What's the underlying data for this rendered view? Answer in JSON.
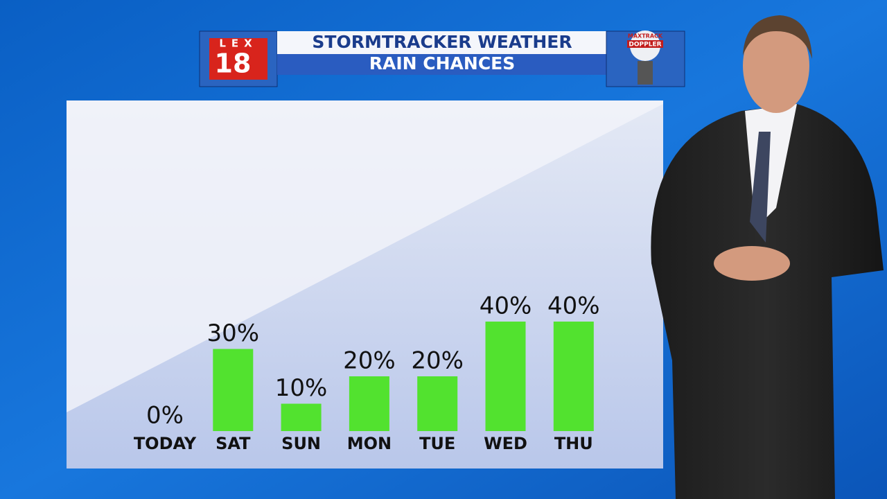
{
  "logo": {
    "station": "LEX",
    "channel": "18"
  },
  "radar_logo": {
    "line1": "MAXTRACK",
    "line2": "DOPPLER"
  },
  "chart_data": {
    "type": "bar",
    "title": "STORMTRACKER WEATHER",
    "subtitle": "RAIN CHANCES",
    "categories": [
      "TODAY",
      "SAT",
      "SUN",
      "MON",
      "TUE",
      "WED",
      "THU"
    ],
    "values": [
      0,
      30,
      10,
      20,
      20,
      40,
      40
    ],
    "value_labels": [
      "0%",
      "30%",
      "10%",
      "20%",
      "20%",
      "40%",
      "40%"
    ],
    "color": "#52e22f"
  }
}
